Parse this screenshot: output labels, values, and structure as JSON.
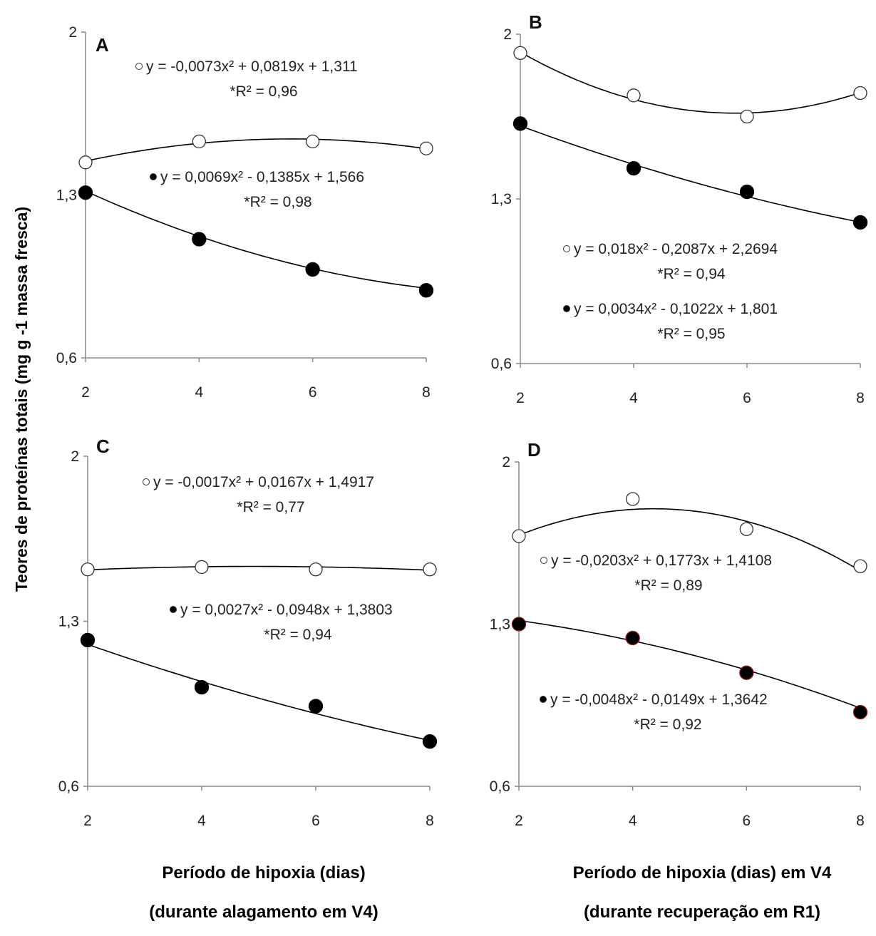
{
  "ylabel": "Teores de proteínas totais (mg g -1 massa fresca)",
  "xlabel_left": [
    "Período de hipoxia (dias)",
    "(durante alagamento em V4)"
  ],
  "xlabel_right": [
    "Período de hipoxia (dias) em V4",
    "(durante recuperação em R1)"
  ],
  "chart_data": [
    {
      "panel": "A",
      "type": "scatter",
      "xticks": [
        2,
        4,
        6,
        8
      ],
      "yticks": [
        0.6,
        1.3,
        2
      ],
      "ytick_labels": [
        "0,6",
        "1,3",
        "2"
      ],
      "xlim": [
        2,
        8
      ],
      "ylim": [
        0.6,
        2
      ],
      "series": [
        {
          "marker": "open",
          "x": [
            2,
            4,
            6,
            8
          ],
          "y": [
            1.44,
            1.53,
            1.53,
            1.5
          ],
          "fit": [
            -0.0073,
            0.0819,
            1.311
          ],
          "equation": "y = -0,0073x² + 0,0819x + 1,311",
          "r2": "*R² = 0,96"
        },
        {
          "marker": "filled",
          "x": [
            2,
            4,
            6,
            8
          ],
          "y": [
            1.31,
            1.11,
            0.98,
            0.89
          ],
          "fit": [
            0.0069,
            -0.1385,
            1.566
          ],
          "equation": "y = 0,0069x² - 0,1385x + 1,566",
          "r2": "*R² = 0,98"
        }
      ]
    },
    {
      "panel": "B",
      "type": "scatter",
      "xticks": [
        2,
        4,
        6,
        8
      ],
      "yticks": [
        0.6,
        1.3,
        2
      ],
      "ytick_labels": [
        "0,6",
        "1,3",
        "2"
      ],
      "xlim": [
        2,
        8
      ],
      "ylim": [
        0.6,
        2
      ],
      "series": [
        {
          "marker": "open",
          "x": [
            2,
            4,
            6,
            8
          ],
          "y": [
            1.92,
            1.74,
            1.65,
            1.75
          ],
          "fit": [
            0.018,
            -0.2087,
            2.2694
          ],
          "equation": "y = 0,018x² - 0,2087x + 2,2694",
          "r2": "*R² = 0,94"
        },
        {
          "marker": "filled",
          "x": [
            2,
            4,
            6,
            8
          ],
          "y": [
            1.62,
            1.43,
            1.33,
            1.2
          ],
          "fit": [
            0.0034,
            -0.1022,
            1.801
          ],
          "equation": "y = 0,0034x² - 0,1022x + 1,801",
          "r2": "*R² = 0,95"
        }
      ]
    },
    {
      "panel": "C",
      "type": "scatter",
      "xticks": [
        2,
        4,
        6,
        8
      ],
      "yticks": [
        0.6,
        1.3,
        2
      ],
      "ytick_labels": [
        "0,6",
        "1,3",
        "2"
      ],
      "xlim": [
        2,
        8
      ],
      "ylim": [
        0.6,
        2
      ],
      "series": [
        {
          "marker": "open",
          "x": [
            2,
            4,
            6,
            8
          ],
          "y": [
            1.52,
            1.53,
            1.52,
            1.52
          ],
          "fit": [
            -0.0017,
            0.0167,
            1.4917
          ],
          "equation": "y = -0,0017x² + 0,0167x + 1,4917",
          "r2": "*R² = 0,77"
        },
        {
          "marker": "filled",
          "x": [
            2,
            4,
            6,
            8
          ],
          "y": [
            1.22,
            1.02,
            0.94,
            0.79
          ],
          "fit": [
            0.0027,
            -0.0948,
            1.3803
          ],
          "equation": "y = 0,0027x² - 0,0948x + 1,3803",
          "r2": "*R² = 0,94"
        }
      ]
    },
    {
      "panel": "D",
      "type": "scatter",
      "xticks": [
        2,
        4,
        6,
        8
      ],
      "yticks": [
        0.6,
        1.3,
        2
      ],
      "ytick_labels": [
        "0,6",
        "1,3",
        "2"
      ],
      "xlim": [
        2,
        8
      ],
      "ylim": [
        0.6,
        2
      ],
      "series": [
        {
          "marker": "open",
          "x": [
            2,
            4,
            6,
            8
          ],
          "y": [
            1.68,
            1.84,
            1.71,
            1.55
          ],
          "fit": [
            -0.0203,
            0.1773,
            1.4108
          ],
          "equation": "y = -0,0203x² + 0,1773x + 1,4108",
          "r2": "*R² = 0,89"
        },
        {
          "marker": "filled",
          "marker_edge": "#8b1a1a",
          "x": [
            2,
            4,
            6,
            8
          ],
          "y": [
            1.3,
            1.24,
            1.09,
            0.92
          ],
          "fit": [
            -0.0048,
            -0.0149,
            1.3642
          ],
          "equation": "y = -0,0048x² - 0,0149x + 1,3642",
          "r2": "*R² = 0,92"
        }
      ]
    }
  ]
}
